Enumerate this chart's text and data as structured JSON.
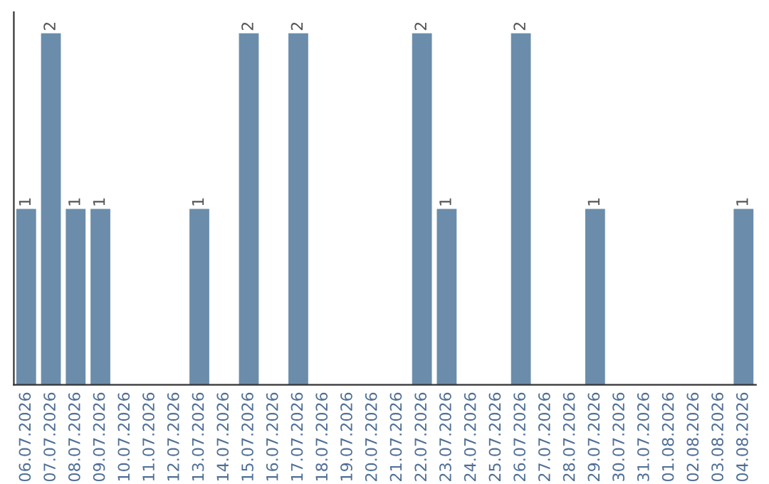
{
  "chart_data": {
    "type": "bar",
    "categories": [
      "06.07.2026",
      "07.07.2026",
      "08.07.2026",
      "09.07.2026",
      "10.07.2026",
      "11.07.2026",
      "12.07.2026",
      "13.07.2026",
      "14.07.2026",
      "15.07.2026",
      "16.07.2026",
      "17.07.2026",
      "18.07.2026",
      "19.07.2026",
      "20.07.2026",
      "21.07.2026",
      "22.07.2026",
      "23.07.2026",
      "24.07.2026",
      "25.07.2026",
      "26.07.2026",
      "27.07.2026",
      "28.07.2026",
      "29.07.2026",
      "30.07.2026",
      "31.07.2026",
      "01.08.2026",
      "02.08.2026",
      "03.08.2026",
      "04.08.2026"
    ],
    "values": [
      1,
      2,
      1,
      1,
      0,
      0,
      0,
      1,
      0,
      2,
      0,
      2,
      0,
      0,
      0,
      0,
      2,
      1,
      0,
      0,
      2,
      0,
      0,
      1,
      0,
      0,
      0,
      0,
      0,
      1
    ],
    "value_labels": [
      "1",
      "2",
      "1",
      "1",
      null,
      null,
      null,
      "1",
      null,
      "2",
      null,
      "2",
      null,
      null,
      null,
      null,
      "2",
      "1",
      null,
      null,
      "2",
      null,
      null,
      "1",
      null,
      null,
      null,
      null,
      null,
      "1"
    ],
    "color": "#6b8dab",
    "tick_labels": "x",
    "grid": false,
    "legend": false
  }
}
